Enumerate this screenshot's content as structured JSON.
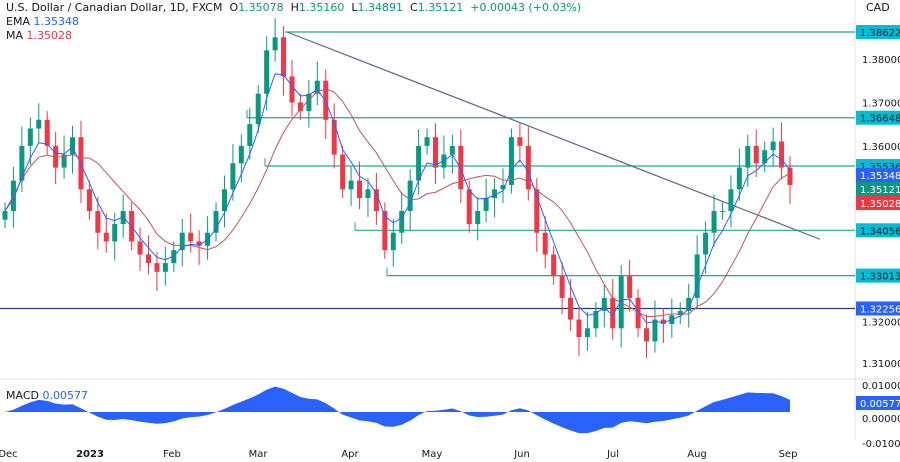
{
  "header": {
    "symbol": "U.S. Dollar / Canadian Dollar, 1D, FXCM",
    "open_label": "O",
    "open": "1.35078",
    "high_label": "H",
    "high": "1.35160",
    "low_label": "L",
    "low": "1.34891",
    "close_label": "C",
    "close": "1.35121",
    "change": "+0.00043 (+0.03%)"
  },
  "ema": {
    "label": "EMA",
    "value": "1.35348"
  },
  "ma": {
    "label": "MA",
    "value": "1.35028"
  },
  "macd": {
    "label": "MACD",
    "value": "0.00577",
    "ticks": [
      "0.01000",
      "0.00000",
      "-0.01000"
    ]
  },
  "chart_data": {
    "type": "candlestick",
    "currency": "CAD",
    "ylim": [
      1.3045,
      1.3915
    ],
    "yticks": [
      "1.38000",
      "1.37000",
      "1.36000",
      "1.32000",
      "1.31000"
    ],
    "xticks": [
      "Dec",
      "2023",
      "Feb",
      "Mar",
      "Apr",
      "May",
      "Jun",
      "Jul",
      "Aug",
      "Sep"
    ],
    "closes": [
      1.345,
      1.352,
      1.36,
      1.364,
      1.366,
      1.36,
      1.355,
      1.358,
      1.362,
      1.35,
      1.345,
      1.34,
      1.338,
      1.342,
      1.345,
      1.338,
      1.335,
      1.333,
      1.331,
      1.333,
      1.336,
      1.34,
      1.338,
      1.337,
      1.34,
      1.345,
      1.35,
      1.356,
      1.36,
      1.365,
      1.372,
      1.382,
      1.385,
      1.376,
      1.37,
      1.368,
      1.372,
      1.375,
      1.366,
      1.358,
      1.35,
      1.352,
      1.348,
      1.35,
      1.345,
      1.336,
      1.34,
      1.345,
      1.352,
      1.36,
      1.362,
      1.355,
      1.358,
      1.36,
      1.35,
      1.342,
      1.345,
      1.348,
      1.35,
      1.351,
      1.362,
      1.36,
      1.35,
      1.34,
      1.335,
      1.33,
      1.325,
      1.32,
      1.316,
      1.318,
      1.322,
      1.325,
      1.318,
      1.33,
      1.325,
      1.318,
      1.315,
      1.32,
      1.319,
      1.321,
      1.322,
      1.325,
      1.335,
      1.34,
      1.345,
      1.345,
      1.35,
      1.355,
      1.36,
      1.356,
      1.359,
      1.361,
      1.355,
      1.351
    ],
    "levels": [
      {
        "value": "1.38622",
        "color": "#26a69a"
      },
      {
        "value": "1.36648",
        "color": "#26a69a"
      },
      {
        "value": "1.35536",
        "color": "#26a69a"
      },
      {
        "value": "1.34056",
        "color": "#26a69a"
      },
      {
        "value": "1.33013",
        "color": "#26a69a"
      },
      {
        "value": "1.32256",
        "color": "#2a3f6e"
      }
    ],
    "price_tags": [
      {
        "value": "1.35348",
        "color": "#2962ff"
      },
      {
        "value": "1.35121",
        "color": "#089981"
      },
      {
        "value": "1.35028",
        "color": "#f23645"
      }
    ],
    "trendline": {
      "from": 1.38622,
      "to": 1.3385
    },
    "colors": {
      "up": "#089981",
      "down": "#f23645",
      "ema": "#2962ff",
      "ma": "#c2575f",
      "macd": "#2962ff"
    }
  }
}
